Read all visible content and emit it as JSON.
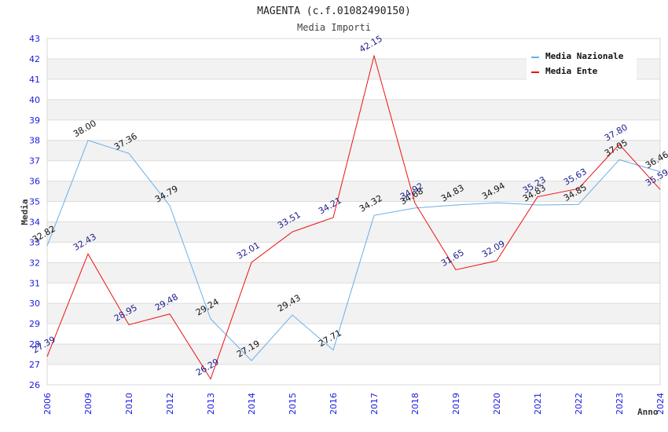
{
  "chart_data": {
    "type": "line",
    "title": "MAGENTA (c.f.01082490150)",
    "subtitle": "Media Importi",
    "xlabel": "Anno",
    "ylabel": "Media",
    "ylim": [
      26,
      43
    ],
    "yticks": [
      26,
      27,
      28,
      29,
      30,
      31,
      32,
      33,
      34,
      35,
      36,
      37,
      38,
      39,
      40,
      41,
      42,
      43
    ],
    "categories": [
      "2006",
      "2009",
      "2010",
      "2012",
      "2013",
      "2014",
      "2015",
      "2016",
      "2017",
      "2018",
      "2019",
      "2020",
      "2021",
      "2022",
      "2023",
      "2024"
    ],
    "grid": true,
    "legend_position": "top-right",
    "series": [
      {
        "name": "Media Nazionale",
        "color": "#6aaee8",
        "values": [
          32.82,
          38.0,
          37.36,
          34.79,
          29.24,
          27.19,
          29.43,
          27.71,
          34.32,
          34.68,
          34.83,
          34.94,
          34.83,
          34.85,
          37.05,
          36.46
        ],
        "labels": [
          "32.82",
          "38.00",
          "37.36",
          "34.79",
          "29.24",
          "27.19",
          "29.43",
          "27.71",
          "34.32",
          "34.68",
          "34.83",
          "34.94",
          "34.83",
          "34.85",
          "37.05",
          "36.46"
        ]
      },
      {
        "name": "Media Ente",
        "color": "#ee1111",
        "values": [
          27.39,
          32.43,
          28.95,
          29.48,
          26.29,
          32.01,
          33.51,
          34.21,
          42.15,
          34.92,
          31.65,
          32.09,
          35.23,
          35.63,
          37.8,
          35.59
        ],
        "labels": [
          "27.39",
          "32.43",
          "28.95",
          "29.48",
          "26.29",
          "32.01",
          "33.51",
          "34.21",
          "42.15",
          "34.92",
          "31.65",
          "32.09",
          "35.23",
          "35.63",
          "37.80",
          "35.59"
        ]
      }
    ]
  }
}
